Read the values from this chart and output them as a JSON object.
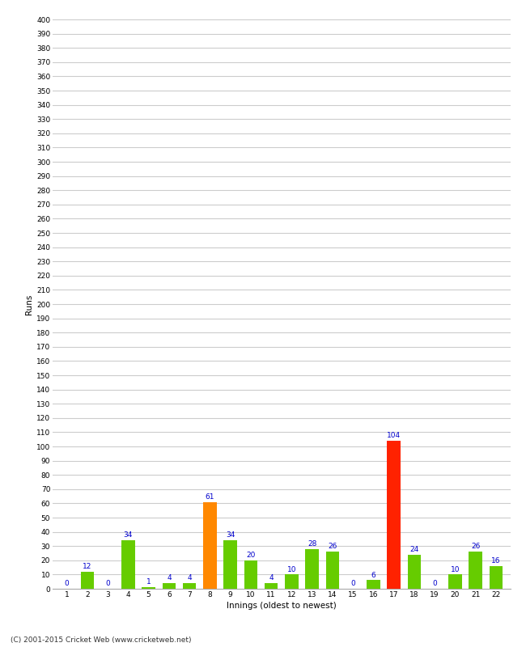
{
  "innings": [
    1,
    2,
    3,
    4,
    5,
    6,
    7,
    8,
    9,
    10,
    11,
    12,
    13,
    14,
    15,
    16,
    17,
    18,
    19,
    20,
    21,
    22
  ],
  "runs": [
    0,
    12,
    0,
    34,
    1,
    4,
    4,
    61,
    34,
    20,
    4,
    10,
    28,
    26,
    0,
    6,
    104,
    24,
    0,
    10,
    26,
    16
  ],
  "colors": [
    "#66cc00",
    "#66cc00",
    "#66cc00",
    "#66cc00",
    "#66cc00",
    "#66cc00",
    "#66cc00",
    "#ff8800",
    "#66cc00",
    "#66cc00",
    "#66cc00",
    "#66cc00",
    "#66cc00",
    "#66cc00",
    "#66cc00",
    "#66cc00",
    "#ff2200",
    "#66cc00",
    "#66cc00",
    "#66cc00",
    "#66cc00",
    "#66cc00"
  ],
  "xlabel": "Innings (oldest to newest)",
  "ylabel": "Runs",
  "ylim": [
    0,
    400
  ],
  "yticks": [
    0,
    10,
    20,
    30,
    40,
    50,
    60,
    70,
    80,
    90,
    100,
    110,
    120,
    130,
    140,
    150,
    160,
    170,
    180,
    190,
    200,
    210,
    220,
    230,
    240,
    250,
    260,
    270,
    280,
    290,
    300,
    310,
    320,
    330,
    340,
    350,
    360,
    370,
    380,
    390,
    400
  ],
  "footer": "(C) 2001-2015 Cricket Web (www.cricketweb.net)",
  "background_color": "#ffffff",
  "grid_color": "#cccccc",
  "label_color": "#0000cc",
  "label_fontsize": 6.5,
  "tick_fontsize": 6.5,
  "axis_label_fontsize": 7.5,
  "bar_width": 0.65
}
